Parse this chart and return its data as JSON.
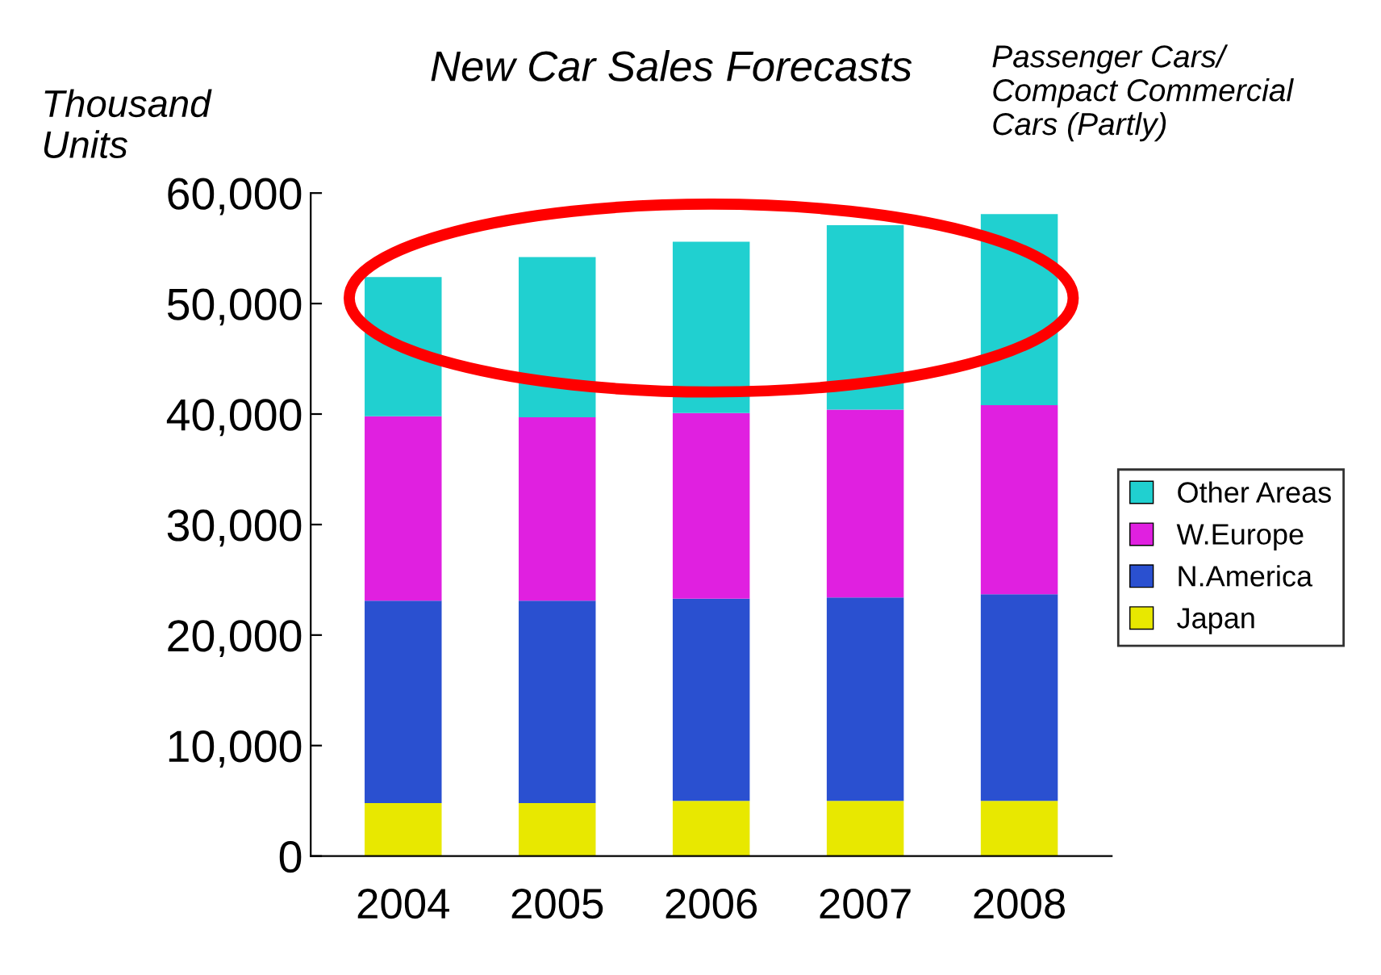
{
  "chart_data": {
    "type": "bar",
    "title": "New Car Sales Forecasts",
    "ylabel": "Thousand\nUnits",
    "annotations": [
      "Passenger Cars/\nCompact Commercial\nCars (Partly)"
    ],
    "categories": [
      "2004",
      "2005",
      "2006",
      "2007",
      "2008"
    ],
    "stacked": true,
    "series": [
      {
        "name": "Japan",
        "color": "#e8e800",
        "values": [
          4800,
          4800,
          5000,
          5000,
          5000
        ]
      },
      {
        "name": "N.America",
        "color": "#2a50d0",
        "values": [
          18300,
          18300,
          18300,
          18400,
          18700
        ]
      },
      {
        "name": "W.Europe",
        "color": "#e020e0",
        "values": [
          16700,
          16600,
          16800,
          17000,
          17100
        ]
      },
      {
        "name": "Other Areas",
        "color": "#20d0d0",
        "values": [
          12600,
          14500,
          15500,
          16700,
          17300
        ]
      }
    ],
    "ylim": [
      0,
      60000
    ],
    "yticks": [
      {
        "value": 0,
        "label": "0"
      },
      {
        "value": 10000,
        "label": "10,000"
      },
      {
        "value": 20000,
        "label": "20,000"
      },
      {
        "value": 30000,
        "label": "30,000"
      },
      {
        "value": 40000,
        "label": "40,000"
      },
      {
        "value": 50000,
        "label": "50,000"
      },
      {
        "value": 60000,
        "label": "60,000"
      }
    ],
    "grid": false,
    "legend": "right"
  }
}
